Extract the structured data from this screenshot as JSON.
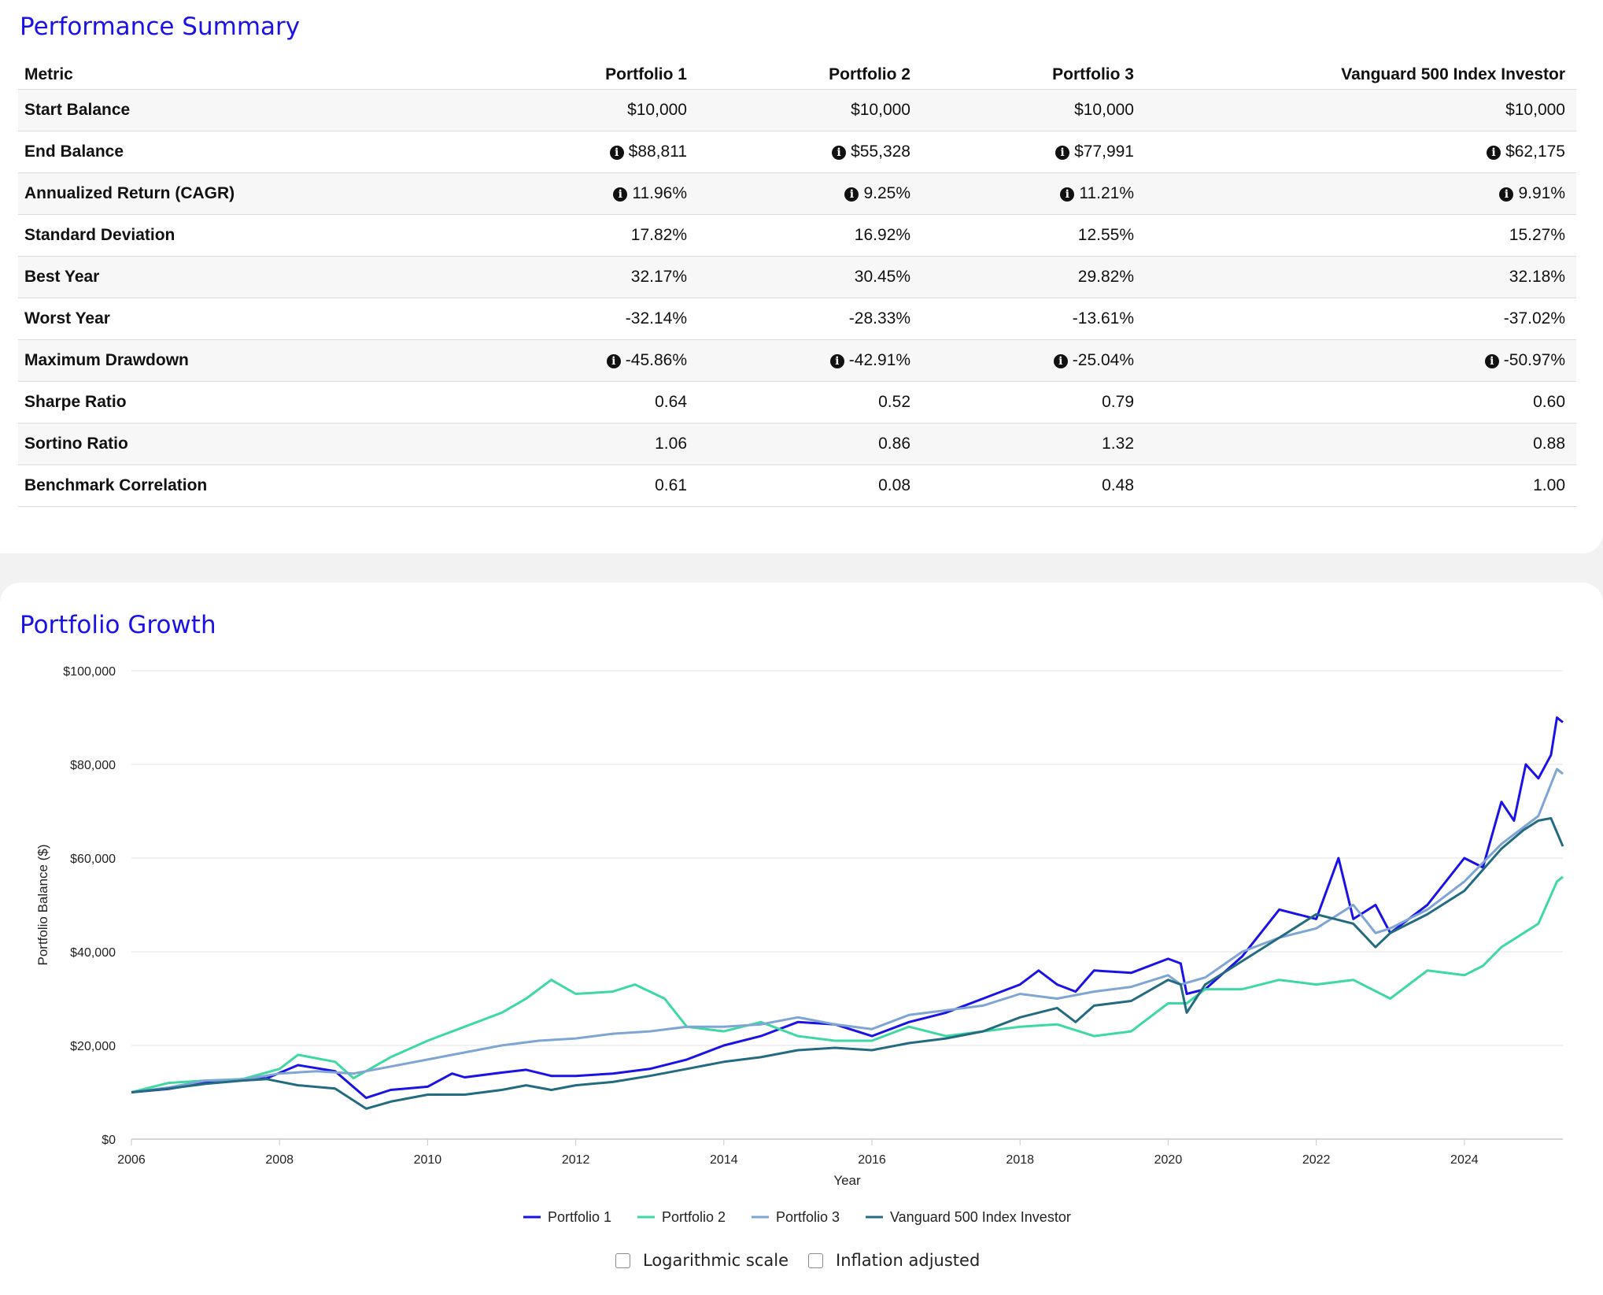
{
  "summary": {
    "title": "Performance Summary",
    "columns": [
      "Metric",
      "Portfolio 1",
      "Portfolio 2",
      "Portfolio 3",
      "Vanguard 500 Index Investor"
    ],
    "rows": [
      {
        "metric": "Start Balance",
        "info": false,
        "values": [
          "$10,000",
          "$10,000",
          "$10,000",
          "$10,000"
        ]
      },
      {
        "metric": "End Balance",
        "info": true,
        "values": [
          "$88,811",
          "$55,328",
          "$77,991",
          "$62,175"
        ]
      },
      {
        "metric": "Annualized Return (CAGR)",
        "info": true,
        "values": [
          "11.96%",
          "9.25%",
          "11.21%",
          "9.91%"
        ]
      },
      {
        "metric": "Standard Deviation",
        "info": false,
        "values": [
          "17.82%",
          "16.92%",
          "12.55%",
          "15.27%"
        ]
      },
      {
        "metric": "Best Year",
        "info": false,
        "values": [
          "32.17%",
          "30.45%",
          "29.82%",
          "32.18%"
        ]
      },
      {
        "metric": "Worst Year",
        "info": false,
        "values": [
          "-32.14%",
          "-28.33%",
          "-13.61%",
          "-37.02%"
        ]
      },
      {
        "metric": "Maximum Drawdown",
        "info": true,
        "values": [
          "-45.86%",
          "-42.91%",
          "-25.04%",
          "-50.97%"
        ]
      },
      {
        "metric": "Sharpe Ratio",
        "info": false,
        "values": [
          "0.64",
          "0.52",
          "0.79",
          "0.60"
        ]
      },
      {
        "metric": "Sortino Ratio",
        "info": false,
        "values": [
          "1.06",
          "0.86",
          "1.32",
          "0.88"
        ]
      },
      {
        "metric": "Benchmark Correlation",
        "info": false,
        "values": [
          "0.61",
          "0.08",
          "0.48",
          "1.00"
        ]
      }
    ],
    "info_icon": "info-circle-icon"
  },
  "growth": {
    "title": "Portfolio Growth",
    "options": {
      "log_label": "Logarithmic scale",
      "log_checked": false,
      "inflation_label": "Inflation adjusted",
      "inflation_checked": false
    }
  },
  "chart_data": {
    "type": "line",
    "title": "",
    "xlabel": "Year",
    "ylabel": "Portfolio Balance ($)",
    "xlim": [
      2006,
      2025.33
    ],
    "ylim": [
      0,
      100000
    ],
    "x_ticks": [
      2006,
      2008,
      2010,
      2012,
      2014,
      2016,
      2018,
      2020,
      2022,
      2024
    ],
    "y_ticks": [
      0,
      20000,
      40000,
      60000,
      80000,
      100000
    ],
    "y_tick_labels": [
      "$0",
      "$20,000",
      "$40,000",
      "$60,000",
      "$80,000",
      "$100,000"
    ],
    "grid": true,
    "legend_position": "bottom",
    "series": [
      {
        "name": "Portfolio 1",
        "color": "#1a12e6",
        "x": [
          2006,
          2006.5,
          2007,
          2007.5,
          2007.83,
          2008.25,
          2008.75,
          2009.17,
          2009.5,
          2010,
          2010.33,
          2010.5,
          2011,
          2011.33,
          2011.67,
          2012,
          2012.5,
          2013,
          2013.5,
          2014,
          2014.5,
          2015,
          2015.5,
          2016,
          2016.5,
          2017,
          2017.5,
          2018,
          2018.25,
          2018.5,
          2018.75,
          2019,
          2019.5,
          2020,
          2020.17,
          2020.25,
          2020.5,
          2021,
          2021.25,
          2021.5,
          2022,
          2022.3,
          2022.5,
          2022.8,
          2023,
          2023.5,
          2024,
          2024.25,
          2024.5,
          2024.67,
          2024.83,
          2025,
          2025.17,
          2025.25,
          2025.33
        ],
        "y": [
          10000,
          10700,
          12000,
          12800,
          13000,
          15800,
          14500,
          8800,
          10500,
          11200,
          14000,
          13200,
          14200,
          14800,
          13500,
          13500,
          14000,
          15000,
          17000,
          20000,
          22000,
          25000,
          24500,
          22000,
          25000,
          27000,
          30000,
          33000,
          36000,
          33000,
          31500,
          36000,
          35500,
          38500,
          37500,
          31000,
          32000,
          39000,
          44000,
          49000,
          47000,
          60000,
          47000,
          50000,
          44000,
          50000,
          60000,
          58000,
          72000,
          68000,
          80000,
          77000,
          82000,
          90000,
          89000
        ]
      },
      {
        "name": "Portfolio 2",
        "color": "#3ed9a2",
        "x": [
          2006,
          2006.5,
          2007,
          2007.5,
          2008,
          2008.25,
          2008.75,
          2009,
          2009.5,
          2010,
          2010.5,
          2011,
          2011.33,
          2011.67,
          2012,
          2012.5,
          2012.8,
          2013.2,
          2013.5,
          2014,
          2014.5,
          2015,
          2015.5,
          2016,
          2016.5,
          2017,
          2017.5,
          2018,
          2018.5,
          2019,
          2019.5,
          2020,
          2020.25,
          2020.5,
          2021,
          2021.5,
          2022,
          2022.5,
          2023,
          2023.5,
          2024,
          2024.25,
          2024.5,
          2025,
          2025.25,
          2025.33
        ],
        "y": [
          10000,
          12000,
          12500,
          12800,
          15000,
          18000,
          16500,
          13000,
          17500,
          21000,
          24000,
          27000,
          30000,
          34000,
          31000,
          31500,
          33000,
          30000,
          24000,
          23000,
          25000,
          22000,
          21000,
          21000,
          24000,
          22000,
          23000,
          24000,
          24500,
          22000,
          23000,
          29000,
          29000,
          32000,
          32000,
          34000,
          33000,
          34000,
          30000,
          36000,
          35000,
          37000,
          41000,
          46000,
          55000,
          56000
        ]
      },
      {
        "name": "Portfolio 3",
        "color": "#7fa5d4",
        "x": [
          2006,
          2006.5,
          2007,
          2007.5,
          2008,
          2008.5,
          2009,
          2009.5,
          2010,
          2010.5,
          2011,
          2011.5,
          2012,
          2012.5,
          2013,
          2013.5,
          2014,
          2014.5,
          2015,
          2015.5,
          2016,
          2016.5,
          2017,
          2017.5,
          2018,
          2018.5,
          2019,
          2019.5,
          2020,
          2020.17,
          2020.5,
          2021,
          2021.5,
          2022,
          2022.5,
          2022.8,
          2023,
          2023.5,
          2024,
          2024.5,
          2025,
          2025.25,
          2025.33
        ],
        "y": [
          10000,
          11000,
          12500,
          12700,
          14000,
          14500,
          14000,
          15500,
          17000,
          18500,
          20000,
          21000,
          21500,
          22500,
          23000,
          24000,
          24000,
          24500,
          26000,
          24500,
          23500,
          26500,
          27500,
          28500,
          31000,
          30000,
          31500,
          32500,
          35000,
          33000,
          34500,
          40000,
          43000,
          45000,
          50000,
          44000,
          45000,
          49000,
          55000,
          63000,
          69000,
          79000,
          78000
        ]
      },
      {
        "name": "Vanguard 500 Index Investor",
        "color": "#236b80",
        "x": [
          2006,
          2006.5,
          2007,
          2007.5,
          2007.83,
          2008.25,
          2008.75,
          2009.17,
          2009.5,
          2010,
          2010.5,
          2011,
          2011.33,
          2011.67,
          2012,
          2012.5,
          2013,
          2013.5,
          2014,
          2014.5,
          2015,
          2015.5,
          2016,
          2016.5,
          2017,
          2017.5,
          2018,
          2018.5,
          2018.75,
          2019,
          2019.5,
          2020,
          2020.17,
          2020.25,
          2020.5,
          2021,
          2021.5,
          2022,
          2022.5,
          2022.8,
          2023,
          2023.5,
          2024,
          2024.5,
          2024.8,
          2025,
          2025.17,
          2025.33
        ],
        "y": [
          10000,
          10800,
          11800,
          12500,
          12800,
          11500,
          10800,
          6500,
          8000,
          9500,
          9500,
          10500,
          11500,
          10500,
          11500,
          12200,
          13500,
          15000,
          16500,
          17500,
          19000,
          19500,
          19000,
          20500,
          21500,
          23000,
          26000,
          28000,
          25000,
          28500,
          29500,
          34000,
          33000,
          27000,
          33000,
          38000,
          43000,
          48000,
          46000,
          41000,
          44000,
          48000,
          53000,
          62000,
          66000,
          68000,
          68500,
          62500
        ]
      }
    ]
  }
}
